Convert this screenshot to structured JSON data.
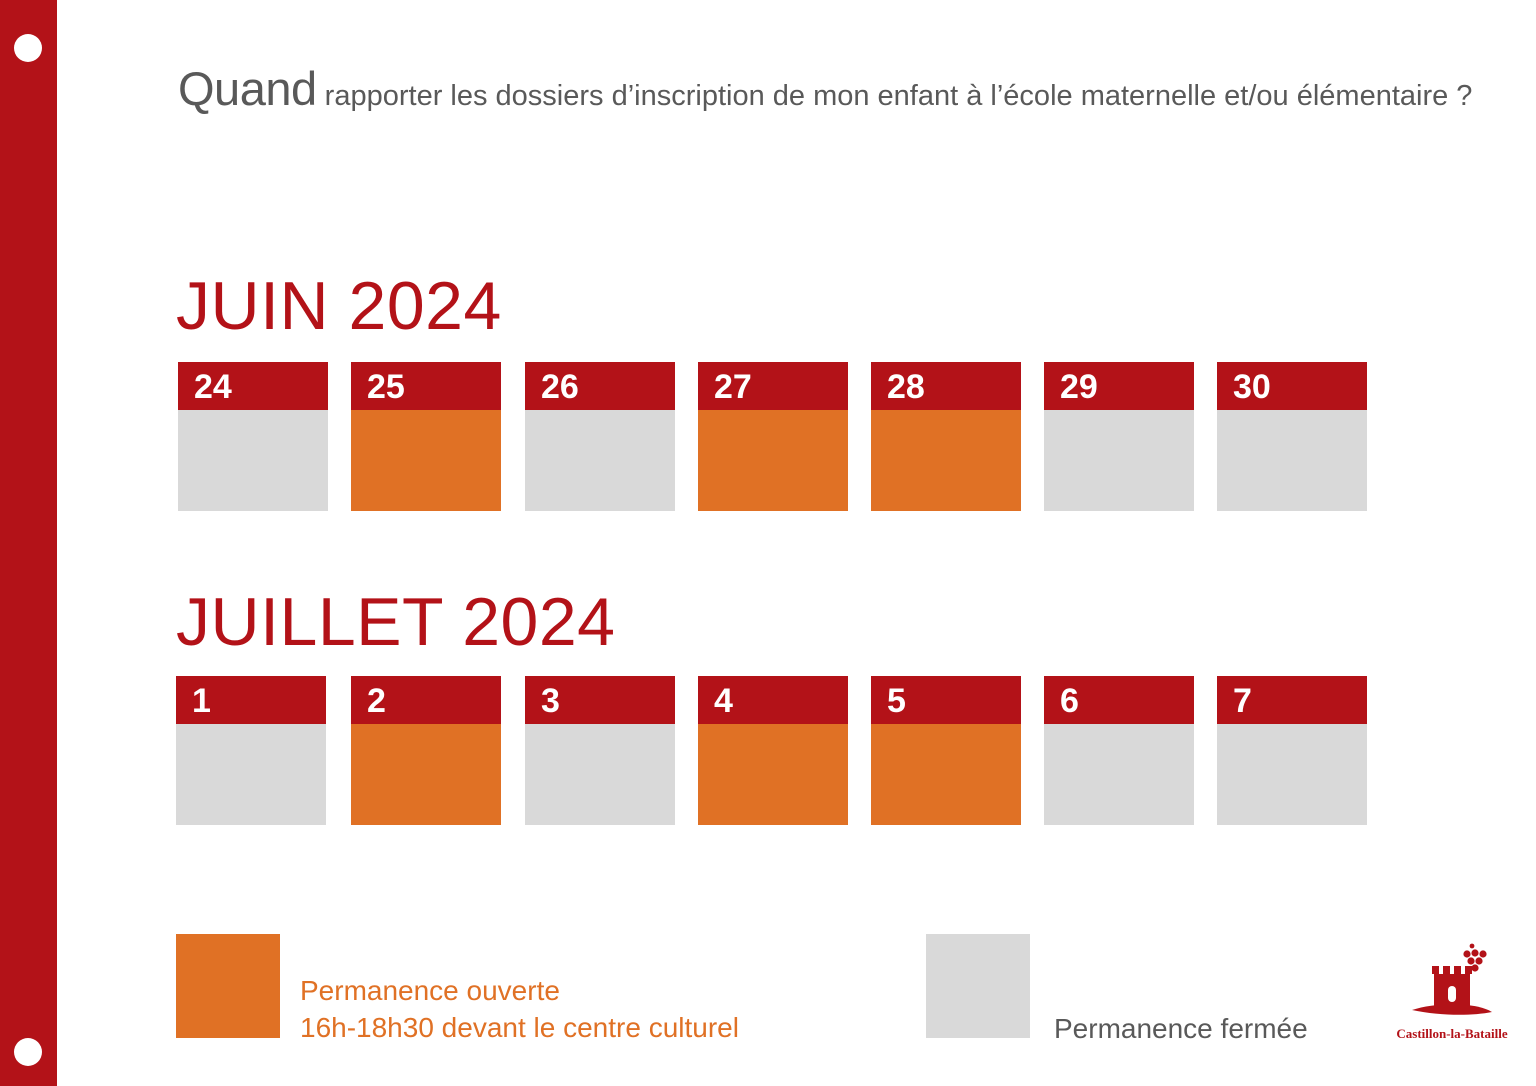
{
  "heading": {
    "lead": "Quand",
    "rest": " rapporter les dossiers d’inscription de mon enfant à l’école maternelle et/ou élémentaire ?"
  },
  "colors": {
    "brand_red": "#b31218",
    "open": "#e07125",
    "closed": "#d9d9d9",
    "text_grey": "#595959"
  },
  "months": [
    {
      "title": "JUIN 2024",
      "days": [
        {
          "label": "24",
          "status": "closed"
        },
        {
          "label": "25",
          "status": "open"
        },
        {
          "label": "26",
          "status": "closed"
        },
        {
          "label": "27",
          "status": "open"
        },
        {
          "label": "28",
          "status": "open"
        },
        {
          "label": "29",
          "status": "closed"
        },
        {
          "label": "30",
          "status": "closed"
        }
      ]
    },
    {
      "title": "JUILLET 2024",
      "days": [
        {
          "label": "1",
          "status": "closed"
        },
        {
          "label": "2",
          "status": "open"
        },
        {
          "label": "3",
          "status": "closed"
        },
        {
          "label": "4",
          "status": "open"
        },
        {
          "label": "5",
          "status": "open"
        },
        {
          "label": "6",
          "status": "closed"
        },
        {
          "label": "7",
          "status": "closed"
        }
      ]
    }
  ],
  "legend": {
    "open_line1": "Permanence ouverte",
    "open_line2": "16h-18h30 devant le centre culturel",
    "closed": "Permanence fermée"
  },
  "logo": {
    "name": "Castillon-la-Bataille",
    "icon": "castle-grapes-logo-icon"
  }
}
